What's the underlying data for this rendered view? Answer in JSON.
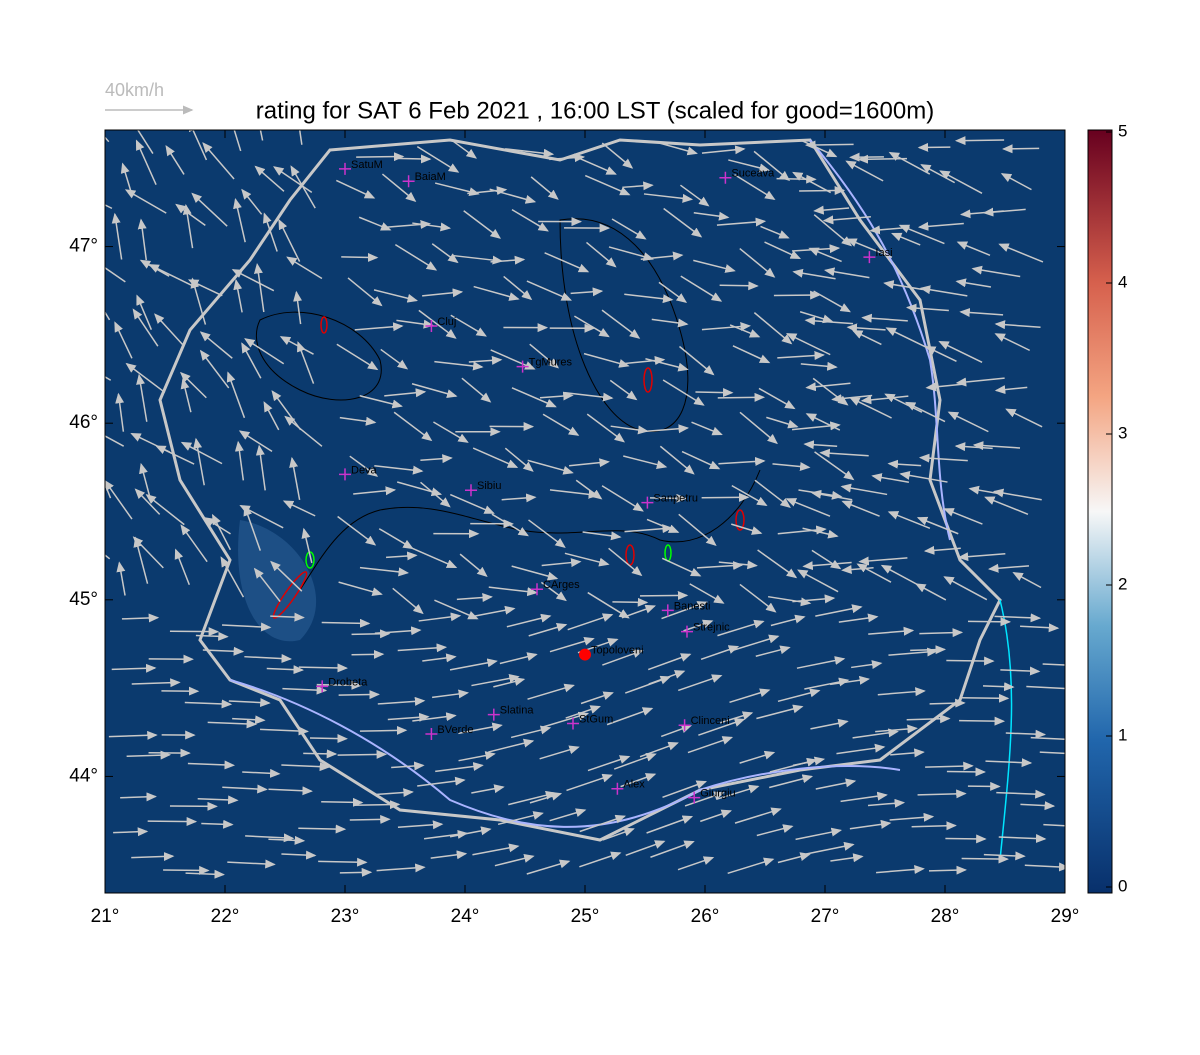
{
  "map": {
    "title": "rating for SAT 6 Feb 2021 , 16:00 LST (scaled for good=1600m)",
    "wind_scale_label": "40km/h",
    "xlim": [
      21,
      29
    ],
    "ylim": [
      43.34,
      47.66
    ],
    "lon_ticks": [
      {
        "value": 21,
        "label": "21°"
      },
      {
        "value": 22,
        "label": "22°"
      },
      {
        "value": 23,
        "label": "23°"
      },
      {
        "value": 24,
        "label": "24°"
      },
      {
        "value": 25,
        "label": "25°"
      },
      {
        "value": 26,
        "label": "26°"
      },
      {
        "value": 27,
        "label": "27°"
      },
      {
        "value": 28,
        "label": "28°"
      },
      {
        "value": 29,
        "label": "29°"
      }
    ],
    "lat_ticks": [
      {
        "value": 44,
        "label": "44°"
      },
      {
        "value": 45,
        "label": "45°"
      },
      {
        "value": 46,
        "label": "46°"
      },
      {
        "value": 47,
        "label": "47°"
      }
    ],
    "colorbar": {
      "range": [
        0,
        5
      ],
      "ticks": [
        0,
        1,
        2,
        3,
        4,
        5
      ]
    },
    "places": [
      {
        "name": "SatuM",
        "lon": 23.0,
        "lat": 47.44
      },
      {
        "name": "BaiaM",
        "lon": 23.53,
        "lat": 47.37
      },
      {
        "name": "Suceava",
        "lon": 26.17,
        "lat": 47.39
      },
      {
        "name": "Iasi",
        "lon": 27.37,
        "lat": 46.94
      },
      {
        "name": "Cluj",
        "lon": 23.72,
        "lat": 46.55
      },
      {
        "name": "TgMures",
        "lon": 24.48,
        "lat": 46.32
      },
      {
        "name": "Deva",
        "lon": 23.0,
        "lat": 45.71
      },
      {
        "name": "Sibiu",
        "lon": 24.05,
        "lat": 45.62
      },
      {
        "name": "Sanpetru",
        "lon": 25.52,
        "lat": 45.55
      },
      {
        "name": "CArges",
        "lon": 24.6,
        "lat": 45.06
      },
      {
        "name": "Banesti",
        "lon": 25.69,
        "lat": 44.94
      },
      {
        "name": "Strejnic",
        "lon": 25.85,
        "lat": 44.82
      },
      {
        "name": "Topoloveni",
        "lon": 25.0,
        "lat": 44.69,
        "color": "#ff0000"
      },
      {
        "name": "Drobeta",
        "lon": 22.81,
        "lat": 44.51
      },
      {
        "name": "Slatina",
        "lon": 24.24,
        "lat": 44.35
      },
      {
        "name": "StGum",
        "lon": 24.9,
        "lat": 44.3
      },
      {
        "name": "Clinceni",
        "lon": 25.83,
        "lat": 44.29
      },
      {
        "name": "BVerde",
        "lon": 23.72,
        "lat": 44.24
      },
      {
        "name": "Alex",
        "lon": 25.27,
        "lat": 43.93
      },
      {
        "name": "Giurgiu",
        "lon": 25.91,
        "lat": 43.88
      }
    ]
  }
}
